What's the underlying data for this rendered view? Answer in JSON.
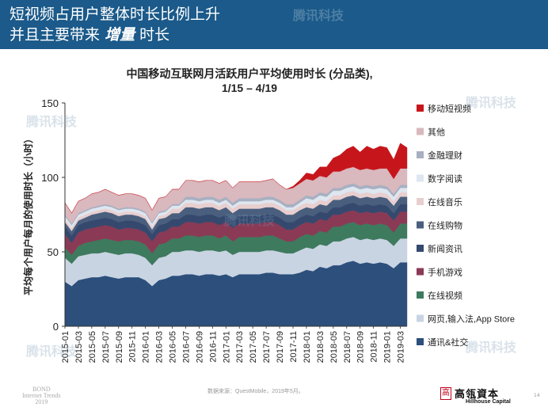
{
  "header": {
    "line1": "短视频占用户整体时长比例上升",
    "line2_prefix": "并且主要带来",
    "line2_emph": "增量",
    "line2_suffix": "时长"
  },
  "watermarks": [
    "腾讯科技",
    "腾讯科技",
    "腾讯科技",
    "腾讯科技",
    "腾讯科技",
    "腾讯科技"
  ],
  "chart_data": {
    "type": "area",
    "stacked": true,
    "title": "中国移动互联网月活跃用户平均使用时长 (分品类),",
    "subtitle": "1/15 – 4/19",
    "xlabel": "",
    "ylabel": "平均每个用户每月的使用时长（小时）",
    "ylim": [
      0,
      150
    ],
    "yticks": [
      0,
      50,
      100,
      150
    ],
    "tick_labels": [
      "2015-01",
      "2015-03",
      "2015-05",
      "2015-07",
      "2015-09",
      "2015-11",
      "2016-01",
      "2016-03",
      "2016-05",
      "2016-07",
      "2016-09",
      "2016-11",
      "2017-01",
      "2017-03",
      "2017-05",
      "2017-07",
      "2017-09",
      "2017-11",
      "2018-01",
      "2018-03",
      "2018-05",
      "2018-07",
      "2018-09",
      "2018-11",
      "2019-01",
      "2019-03"
    ],
    "x": [
      "2015-01",
      "2015-02",
      "2015-03",
      "2015-04",
      "2015-05",
      "2015-06",
      "2015-07",
      "2015-08",
      "2015-09",
      "2015-10",
      "2015-11",
      "2015-12",
      "2016-01",
      "2016-02",
      "2016-03",
      "2016-04",
      "2016-05",
      "2016-06",
      "2016-07",
      "2016-08",
      "2016-09",
      "2016-10",
      "2016-11",
      "2016-12",
      "2017-01",
      "2017-02",
      "2017-03",
      "2017-04",
      "2017-05",
      "2017-06",
      "2017-07",
      "2017-08",
      "2017-09",
      "2017-10",
      "2017-11",
      "2017-12",
      "2018-01",
      "2018-02",
      "2018-03",
      "2018-04",
      "2018-05",
      "2018-06",
      "2018-07",
      "2018-08",
      "2018-09",
      "2018-10",
      "2018-11",
      "2018-12",
      "2019-01",
      "2019-02",
      "2019-03",
      "2019-04"
    ],
    "series": [
      {
        "name": "通讯&社交",
        "color": "#2c4f7c",
        "values": [
          30,
          27,
          31,
          32,
          33,
          33,
          34,
          33,
          32,
          33,
          33,
          33,
          31,
          27,
          31,
          32,
          34,
          34,
          35,
          35,
          34,
          35,
          35,
          34,
          35,
          33,
          35,
          35,
          35,
          35,
          36,
          36,
          35,
          35,
          35,
          36,
          38,
          37,
          40,
          39,
          41,
          41,
          43,
          44,
          42,
          43,
          42,
          43,
          42,
          39,
          43,
          43
        ]
      },
      {
        "name": "网页,输入法,App Store",
        "color": "#c9d4e2",
        "values": [
          16,
          15,
          16,
          16,
          16,
          16,
          16,
          16,
          16,
          16,
          16,
          15,
          15,
          14,
          15,
          15,
          16,
          16,
          16,
          16,
          16,
          16,
          16,
          16,
          16,
          15,
          15,
          15,
          15,
          15,
          15,
          15,
          15,
          14,
          14,
          15,
          15,
          15,
          15,
          15,
          16,
          16,
          16,
          16,
          16,
          16,
          16,
          16,
          16,
          15,
          16,
          16
        ]
      },
      {
        "name": "在线视频",
        "color": "#3e7a5e",
        "values": [
          7,
          6,
          7,
          8,
          8,
          9,
          9,
          9,
          9,
          9,
          9,
          9,
          9,
          8,
          9,
          9,
          9,
          9,
          10,
          10,
          10,
          10,
          10,
          9,
          10,
          9,
          10,
          10,
          10,
          10,
          10,
          10,
          9,
          8,
          8,
          9,
          9,
          9,
          9,
          9,
          10,
          10,
          10,
          10,
          10,
          10,
          10,
          10,
          10,
          9,
          10,
          10
        ]
      },
      {
        "name": "手机游戏",
        "color": "#8a3a55",
        "values": [
          9,
          8,
          9,
          9,
          9,
          9,
          9,
          9,
          8,
          8,
          8,
          8,
          8,
          8,
          8,
          8,
          8,
          8,
          9,
          9,
          9,
          9,
          9,
          9,
          9,
          9,
          9,
          9,
          9,
          9,
          9,
          9,
          9,
          8,
          8,
          8,
          8,
          8,
          8,
          8,
          8,
          8,
          8,
          8,
          8,
          8,
          8,
          8,
          8,
          8,
          8,
          8
        ]
      },
      {
        "name": "新闻资讯",
        "color": "#35496e",
        "values": [
          5,
          5,
          5,
          5,
          5,
          5,
          5,
          5,
          5,
          5,
          5,
          5,
          5,
          5,
          5,
          5,
          5,
          5,
          5,
          5,
          5,
          5,
          5,
          5,
          5,
          5,
          5,
          5,
          5,
          5,
          5,
          5,
          5,
          5,
          5,
          5,
          5,
          5,
          5,
          5,
          5,
          5,
          5,
          5,
          5,
          5,
          5,
          5,
          5,
          5,
          5,
          5
        ]
      },
      {
        "name": "在线购物",
        "color": "#4a5f7e",
        "values": [
          3,
          3,
          3,
          3,
          4,
          4,
          4,
          4,
          4,
          4,
          4,
          4,
          4,
          3,
          4,
          4,
          4,
          4,
          5,
          5,
          5,
          5,
          5,
          5,
          5,
          5,
          5,
          5,
          5,
          5,
          5,
          5,
          5,
          5,
          5,
          5,
          5,
          5,
          5,
          5,
          5,
          5,
          5,
          5,
          5,
          5,
          5,
          5,
          5,
          5,
          5,
          5
        ]
      },
      {
        "name": "在线音乐",
        "color": "#e8cfcf",
        "values": [
          2,
          2,
          2,
          2,
          2,
          2,
          2,
          2,
          2,
          2,
          2,
          2,
          2,
          2,
          2,
          2,
          3,
          3,
          3,
          3,
          3,
          3,
          3,
          3,
          3,
          3,
          3,
          3,
          3,
          3,
          3,
          3,
          3,
          3,
          3,
          3,
          3,
          3,
          3,
          3,
          3,
          3,
          3,
          3,
          3,
          3,
          3,
          3,
          3,
          3,
          3,
          3
        ]
      },
      {
        "name": "数字阅读",
        "color": "#dee6f0",
        "values": [
          2,
          2,
          2,
          2,
          2,
          2,
          2,
          2,
          2,
          2,
          2,
          2,
          2,
          2,
          2,
          2,
          2,
          2,
          2,
          2,
          2,
          2,
          2,
          2,
          2,
          2,
          2,
          2,
          2,
          2,
          2,
          2,
          2,
          2,
          2,
          2,
          3,
          3,
          3,
          3,
          3,
          3,
          3,
          3,
          3,
          3,
          3,
          3,
          3,
          3,
          3,
          3
        ]
      },
      {
        "name": "金融理财",
        "color": "#a7b0c1",
        "values": [
          1,
          1,
          1,
          1,
          1,
          1,
          1,
          1,
          1,
          1,
          1,
          1,
          1,
          1,
          1,
          1,
          1,
          1,
          2,
          2,
          2,
          2,
          2,
          2,
          2,
          2,
          2,
          2,
          2,
          2,
          2,
          2,
          2,
          2,
          2,
          2,
          2,
          2,
          2,
          2,
          2,
          2,
          2,
          2,
          2,
          2,
          2,
          2,
          2,
          2,
          2,
          2
        ]
      },
      {
        "name": "其他",
        "color": "#d9b8be",
        "values": [
          8,
          7,
          8,
          8,
          9,
          9,
          10,
          9,
          9,
          9,
          9,
          9,
          9,
          8,
          9,
          9,
          10,
          10,
          11,
          11,
          11,
          11,
          11,
          11,
          11,
          10,
          11,
          11,
          11,
          11,
          11,
          12,
          10,
          10,
          11,
          11,
          11,
          11,
          11,
          11,
          11,
          11,
          11,
          11,
          11,
          11,
          11,
          11,
          12,
          10,
          11,
          11
        ]
      },
      {
        "name": "移动短视频",
        "color": "#c6161c",
        "values": [
          0,
          0,
          0,
          0,
          0,
          0,
          0,
          0,
          0,
          0,
          0,
          0,
          0,
          0,
          0,
          0,
          0,
          0,
          0,
          0,
          0,
          0,
          0,
          0,
          0,
          0,
          0,
          0,
          0,
          0,
          0,
          0,
          0,
          0,
          1,
          2,
          4,
          4,
          6,
          7,
          9,
          11,
          13,
          14,
          12,
          15,
          14,
          15,
          14,
          13,
          17,
          14
        ]
      }
    ]
  },
  "footer": {
    "source": "数据来源：QuestMobile，2019年5月。",
    "bond_line1": "BOND",
    "bond_line2": "Internet Trends",
    "bond_line3": "2019",
    "logo_mark": "高",
    "logo_cn": "高瓴資本",
    "logo_en": "Hillhouse Capital",
    "page_number": "14"
  }
}
